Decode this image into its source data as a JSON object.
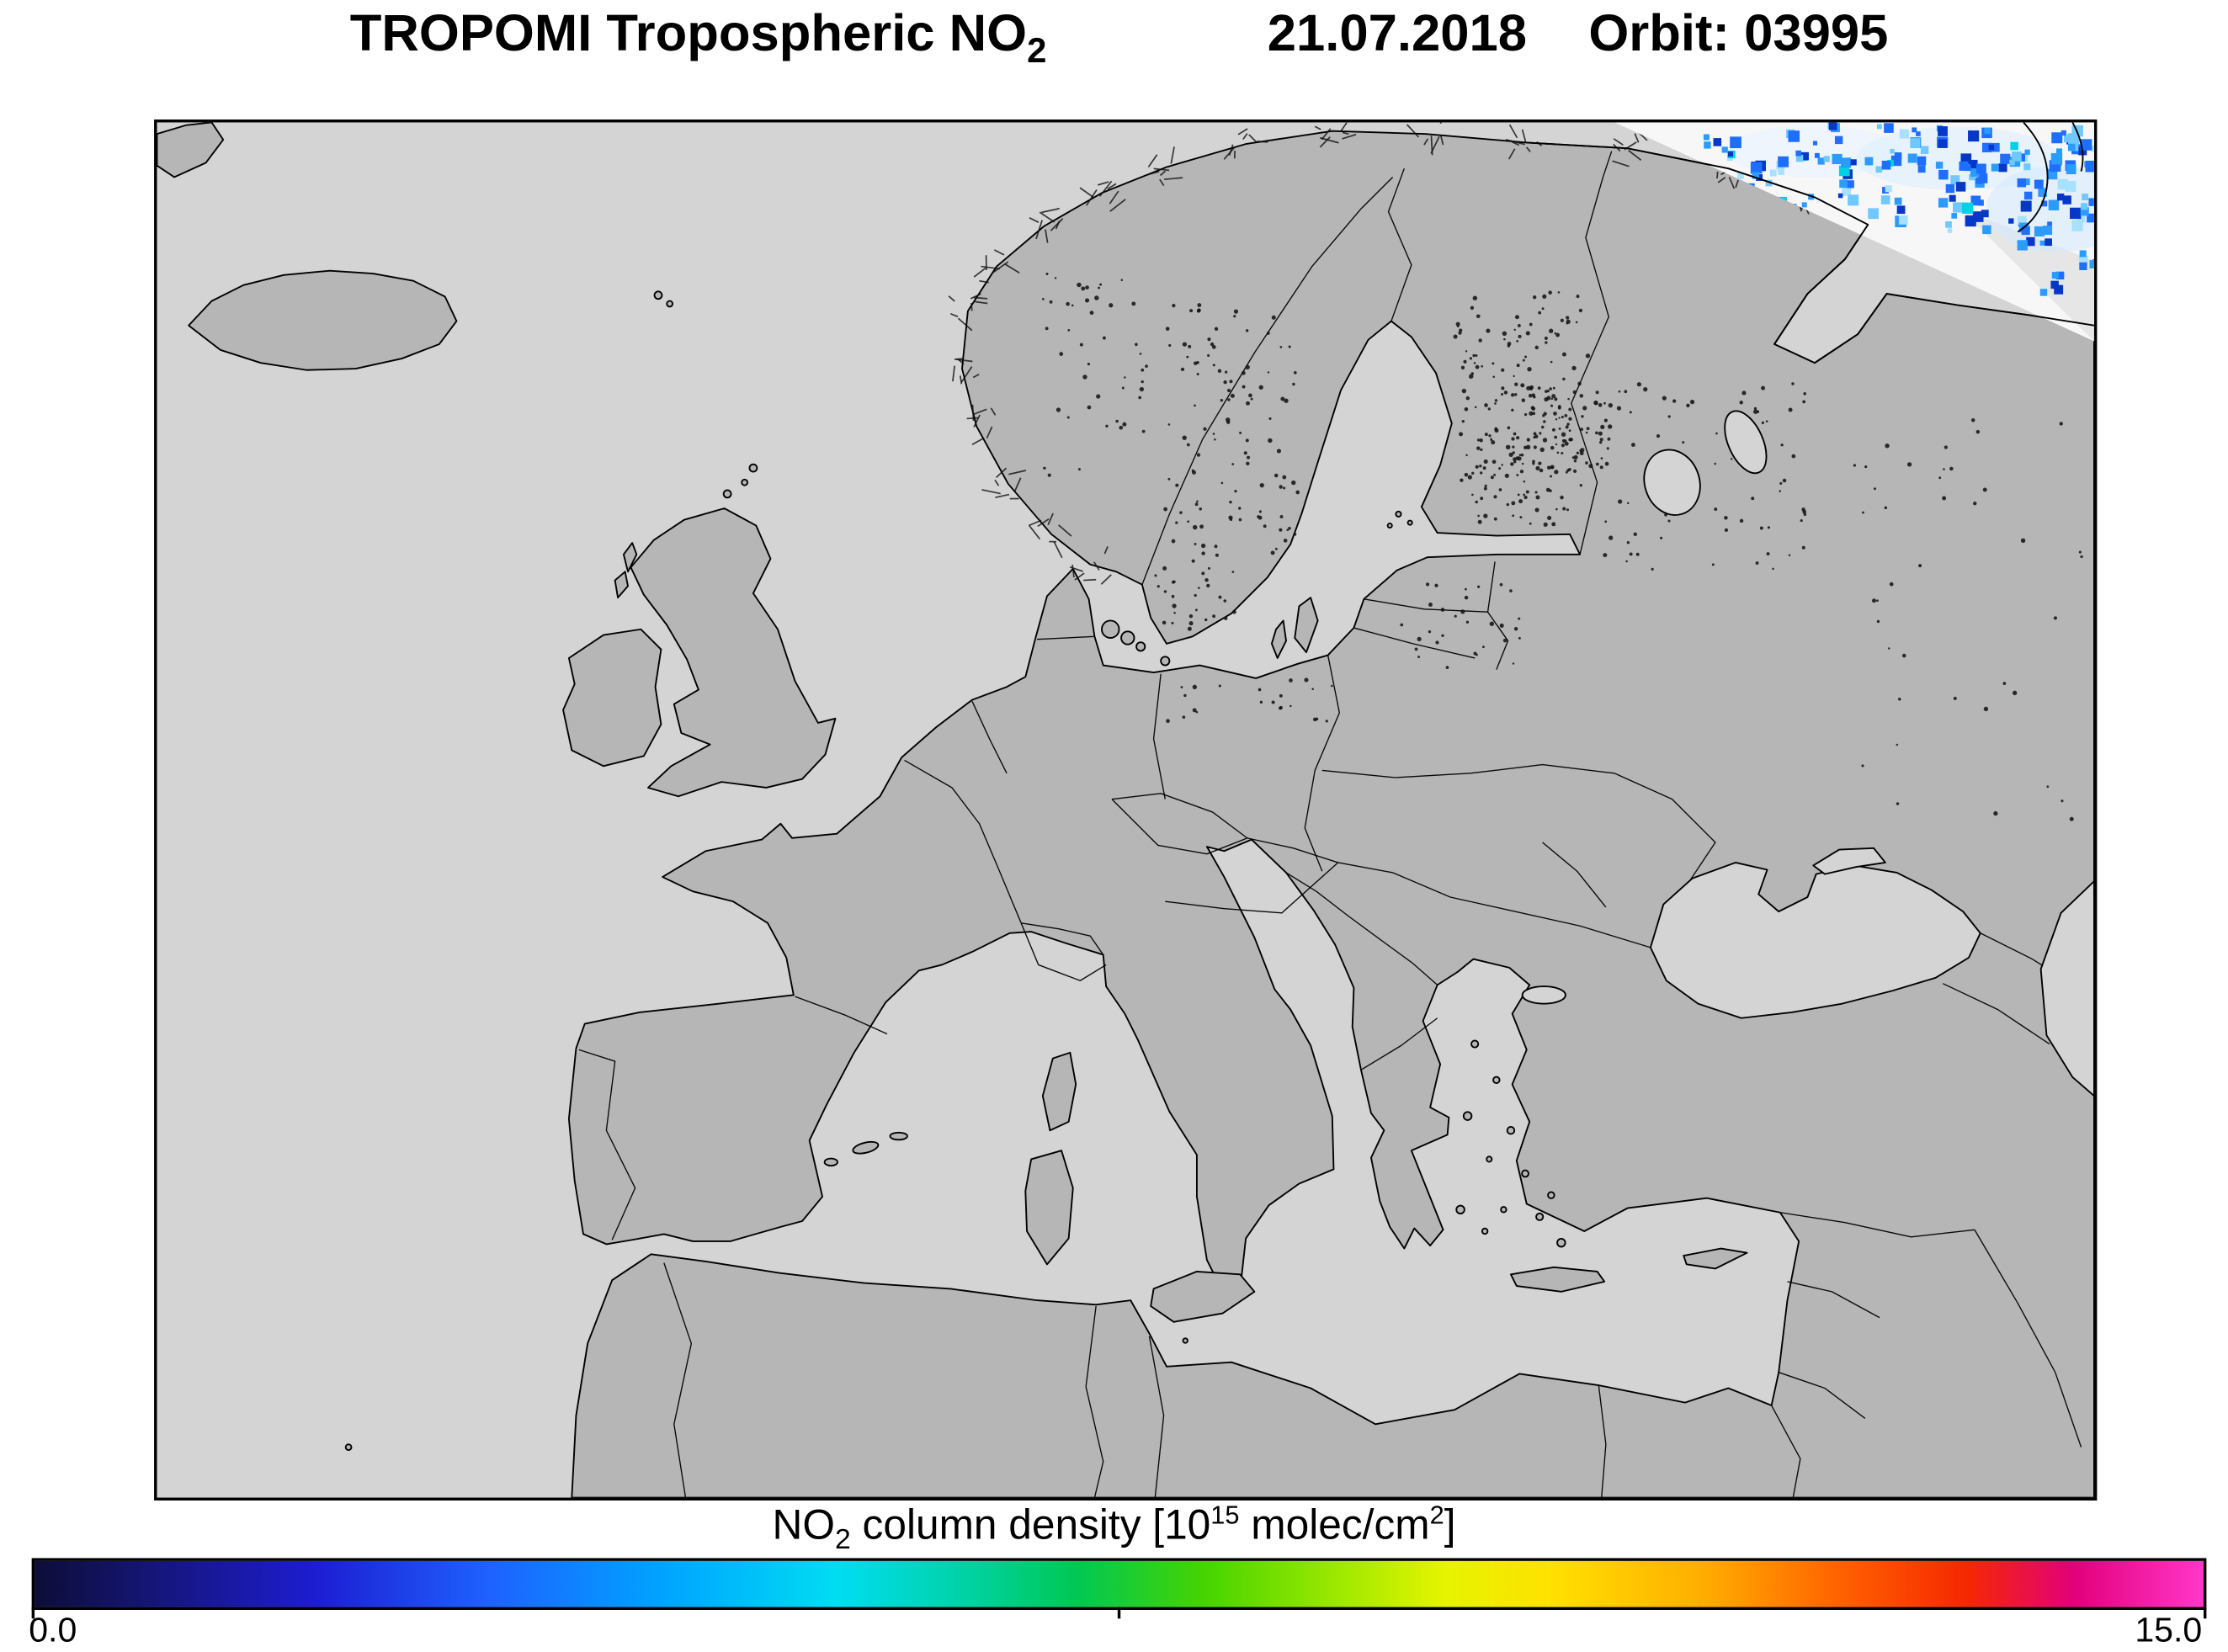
{
  "header": {
    "title_main": "TROPOMI Tropospheric NO",
    "title_sub": "2",
    "date": "21.07.2018",
    "orbit": "Orbit: 03995"
  },
  "colorbar": {
    "label_no": "NO",
    "label_no_sub": "2",
    "label_mid": " column density [10",
    "label_exp": "15",
    "label_unit": " molec/cm",
    "label_unit_exp": "2",
    "label_close": "]",
    "tick_min": "0.0",
    "tick_max": "15.0"
  },
  "map_colors": {
    "sea": "#d4d4d4",
    "land": "#b6b6b6",
    "coastline": "#000000",
    "swath_background": "#f7f7f7",
    "data_blue": "#1e6eff"
  },
  "chart_data": {
    "type": "heatmap",
    "title": "TROPOMI Tropospheric NO2",
    "date": "21.07.2018",
    "orbit": "03995",
    "region": "Europe",
    "colorbar": {
      "label": "NO2 column density [10^15 molec/cm^2]",
      "min": 0.0,
      "max": 15.0,
      "units": "10^15 molec/cm^2",
      "colormap": [
        {
          "color": "#0d0d38",
          "pos": 0
        },
        {
          "color": "#16167e",
          "pos": 6
        },
        {
          "color": "#1d1dd2",
          "pos": 13
        },
        {
          "color": "#1e62ff",
          "pos": 21
        },
        {
          "color": "#00a4ff",
          "pos": 29
        },
        {
          "color": "#00ddf2",
          "pos": 37
        },
        {
          "color": "#00d2a4",
          "pos": 43
        },
        {
          "color": "#00c853",
          "pos": 48
        },
        {
          "color": "#47d400",
          "pos": 54
        },
        {
          "color": "#9ce800",
          "pos": 60
        },
        {
          "color": "#e6f400",
          "pos": 65
        },
        {
          "color": "#ffe100",
          "pos": 70
        },
        {
          "color": "#ffad00",
          "pos": 77
        },
        {
          "color": "#ff6400",
          "pos": 83
        },
        {
          "color": "#f52800",
          "pos": 89
        },
        {
          "color": "#e2007a",
          "pos": 94
        },
        {
          "color": "#ff37c8",
          "pos": 100
        }
      ]
    },
    "data_coverage": "Measured NO2 values (white swath with blue/cyan pixels, approx. 0-5 range) appear only in the upper-right corner over the Barents Sea region; the rest of the map is the gray basemap with no data for this orbit."
  }
}
